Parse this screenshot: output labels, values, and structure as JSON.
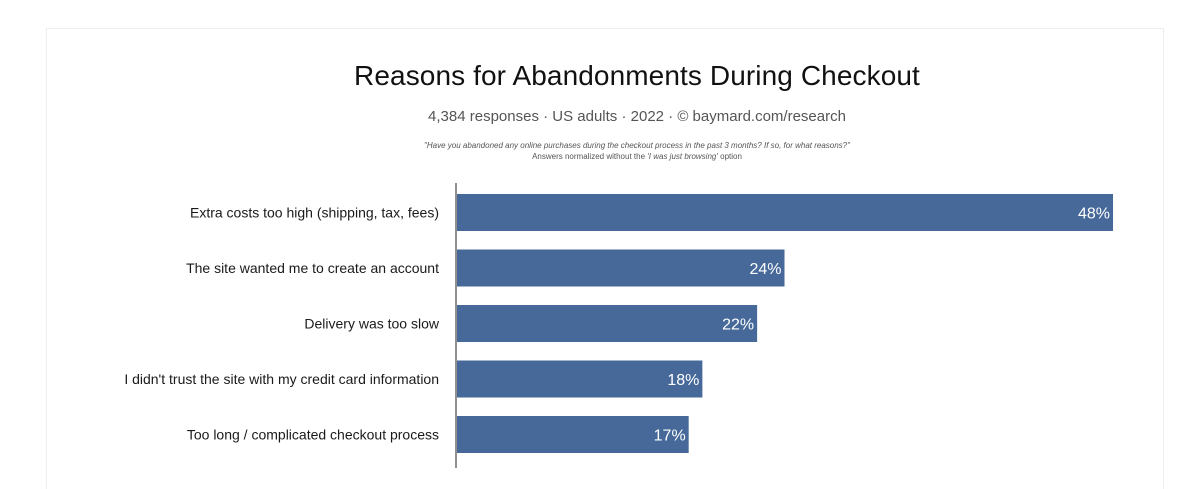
{
  "chart_data": {
    "type": "bar",
    "orientation": "horizontal",
    "title": "Reasons for Abandonments During Checkout",
    "subtitle": "4,384 responses · US adults · 2022 · © baymard.com/research",
    "question": "\"Have you abandoned any online purchases during the checkout process in the past 3 months? If so, for what reasons?\"",
    "note_prefix": "Answers normalized without the ",
    "note_emphasis": "'I was just browsing'",
    "note_suffix": " option",
    "categories": [
      "Extra costs too high (shipping, tax, fees)",
      "The site wanted me to create an account",
      "Delivery was too slow",
      "I didn't trust the site with my credit card information",
      "Too long / complicated checkout process"
    ],
    "values": [
      48,
      24,
      22,
      18,
      17
    ],
    "value_labels": [
      "48%",
      "24%",
      "22%",
      "18%",
      "17%"
    ],
    "bar_color": "#46699a",
    "grid": false
  }
}
